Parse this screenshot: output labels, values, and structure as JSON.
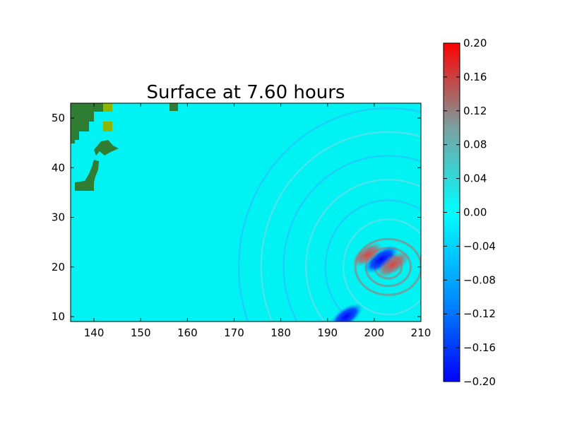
{
  "chart_data": {
    "type": "heatmap",
    "title": "Surface at 7.60 hours",
    "xlabel": "",
    "ylabel": "",
    "xlim": [
      135,
      210
    ],
    "ylim": [
      9,
      53
    ],
    "x_ticks": [
      140,
      150,
      160,
      170,
      180,
      190,
      200,
      210
    ],
    "y_ticks": [
      10,
      20,
      30,
      40,
      50
    ],
    "grid": false,
    "colorbar": {
      "vmin": -0.2,
      "vmax": 0.2,
      "ticks": [
        "0.20",
        "0.16",
        "0.12",
        "0.08",
        "0.04",
        "0.00",
        "−0.04",
        "−0.08",
        "−0.12",
        "−0.16",
        "−0.20"
      ],
      "colors": {
        "min": "#0000ff",
        "mid_low": "#00a8ff",
        "zero": "#00ffff",
        "mid_high": "#a08080",
        "max": "#ff0000"
      }
    },
    "land_color": "#2e7d32",
    "land_highlight_color": "#8db600",
    "features": [
      {
        "kind": "negative_trough",
        "lon": 201.5,
        "lat": 21.5,
        "value": -0.2
      },
      {
        "kind": "positive_crest",
        "lon": 198.5,
        "lat": 22.5,
        "value": 0.15
      },
      {
        "kind": "positive_crest",
        "lon": 204,
        "lat": 20.5,
        "value": 0.18
      },
      {
        "kind": "negative_trough",
        "lon": 194,
        "lat": 10,
        "value": -0.18
      },
      {
        "kind": "wave_front_arc",
        "center_lon": 203,
        "center_lat": 20,
        "radius_deg": 32,
        "value": -0.03
      }
    ]
  }
}
